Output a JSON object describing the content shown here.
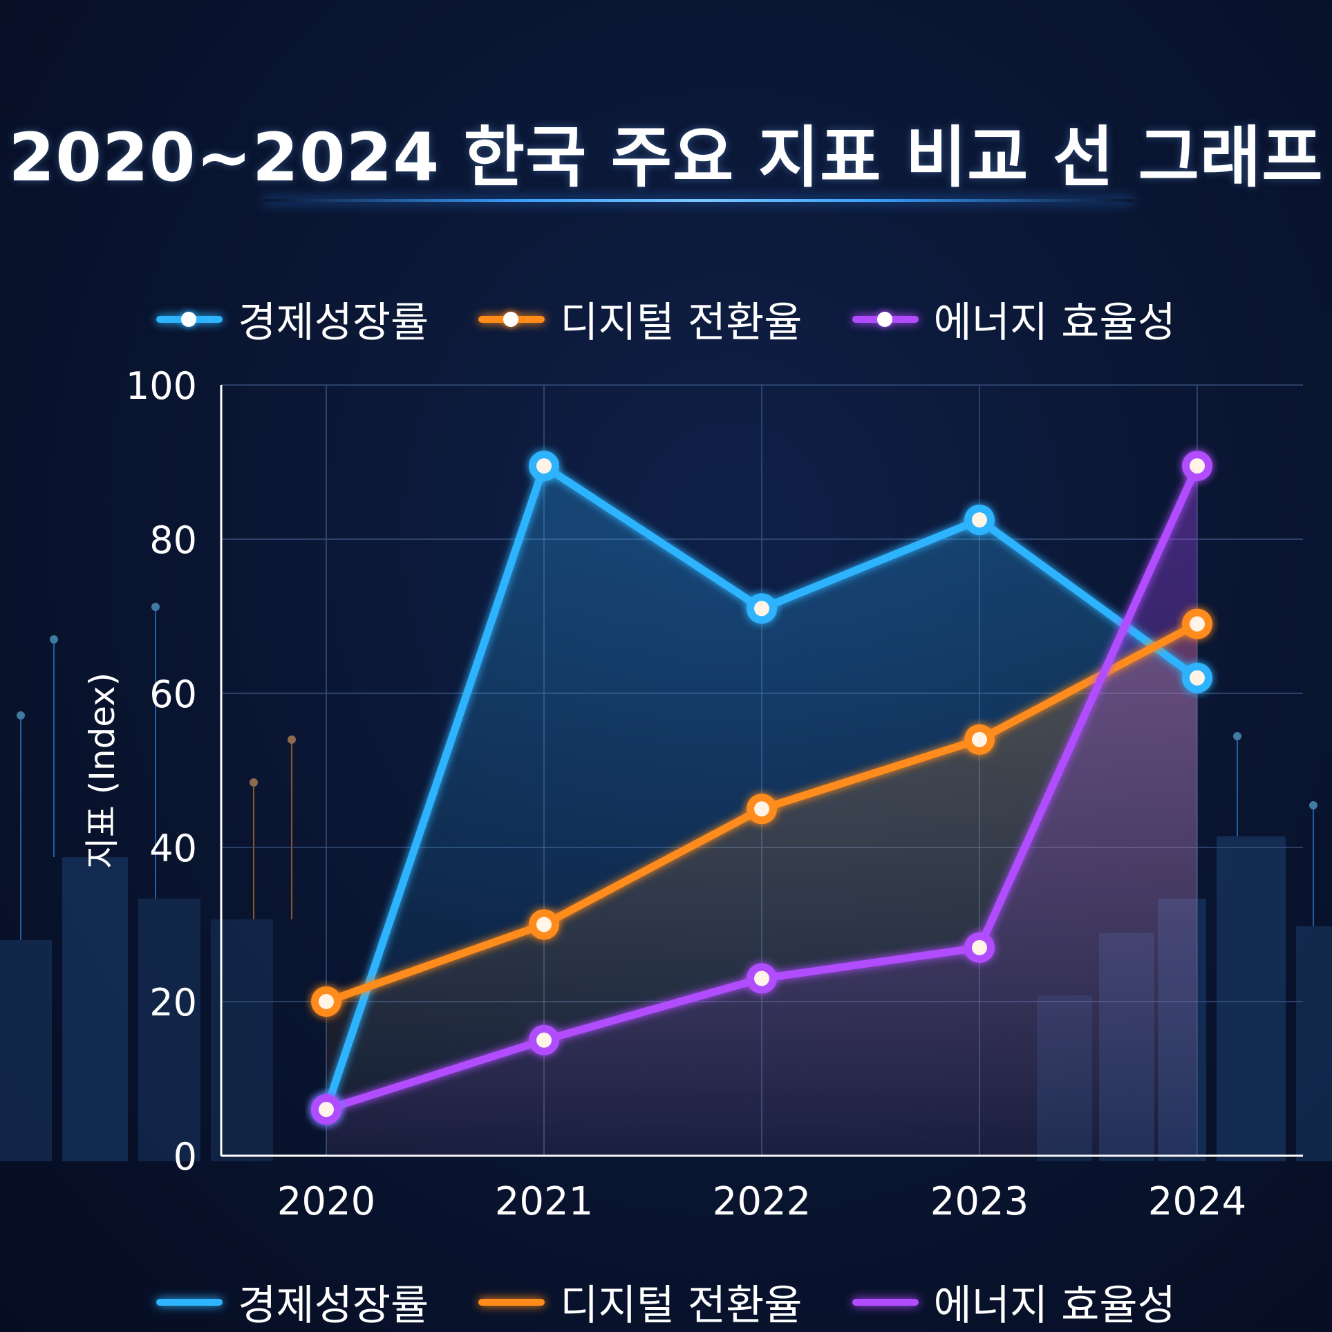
{
  "chart_data": {
    "type": "line",
    "title": "2020~2024 한국 주요 지표 비교 선 그래프",
    "xlabel": "",
    "ylabel": "지표 (Index)",
    "categories": [
      "2020",
      "2021",
      "2022",
      "2023",
      "2024"
    ],
    "yticks": [
      "0",
      "20",
      "40",
      "60",
      "80",
      "100"
    ],
    "ylim": [
      0,
      100
    ],
    "grid": true,
    "legend_position": "top and bottom",
    "series": [
      {
        "name": "경제성장률",
        "color": "#2fb4ff",
        "values": [
          6,
          89.5,
          71,
          82.5,
          62
        ]
      },
      {
        "name": "디지털 전환율",
        "color": "#ff8c1a",
        "values": [
          20,
          30,
          45,
          54,
          69
        ]
      },
      {
        "name": "에너지 효율성",
        "color": "#b14dff",
        "values": [
          6,
          15,
          23,
          27,
          89.5
        ]
      }
    ]
  }
}
